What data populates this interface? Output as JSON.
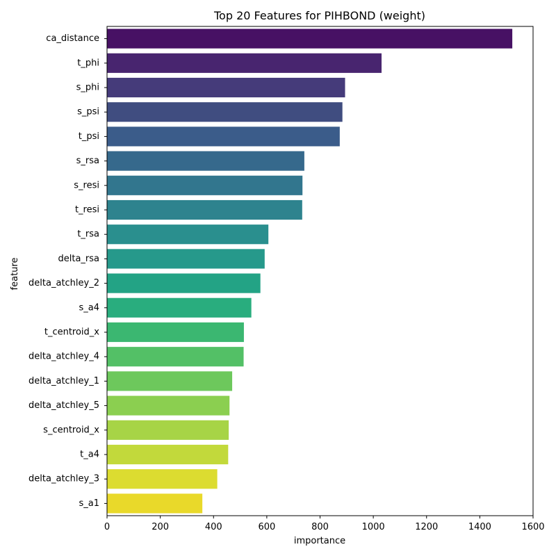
{
  "chart_data": {
    "type": "bar",
    "orientation": "horizontal",
    "title": "Top 20 Features for PIHBOND (weight)",
    "xlabel": "importance",
    "ylabel": "feature",
    "xlim": [
      0,
      1600
    ],
    "xticks": [
      0,
      200,
      400,
      600,
      800,
      1000,
      1200,
      1400,
      1600
    ],
    "grid": false,
    "colormap": "viridis",
    "categories": [
      "ca_distance",
      "t_phi",
      "s_phi",
      "s_psi",
      "t_psi",
      "s_rsa",
      "s_resi",
      "t_resi",
      "t_rsa",
      "delta_rsa",
      "delta_atchley_2",
      "s_a4",
      "t_centroid_x",
      "delta_atchley_4",
      "delta_atchley_1",
      "delta_atchley_5",
      "s_centroid_x",
      "t_a4",
      "delta_atchley_3",
      "s_a1"
    ],
    "values": [
      1522,
      1031,
      894,
      884,
      874,
      741,
      734,
      733,
      606,
      592,
      576,
      542,
      514,
      513,
      470,
      460,
      457,
      455,
      414,
      358
    ],
    "colors": [
      "#471164",
      "#48256f",
      "#453b7a",
      "#404d80",
      "#3b5c8a",
      "#36698c",
      "#32768e",
      "#2e838e",
      "#2a8f8e",
      "#26998b",
      "#23a385",
      "#29ad7e",
      "#3bb771",
      "#53c066",
      "#6dc85c",
      "#8bcf50",
      "#a7d446",
      "#c2d93b",
      "#dcdc30",
      "#e9d92a"
    ]
  }
}
